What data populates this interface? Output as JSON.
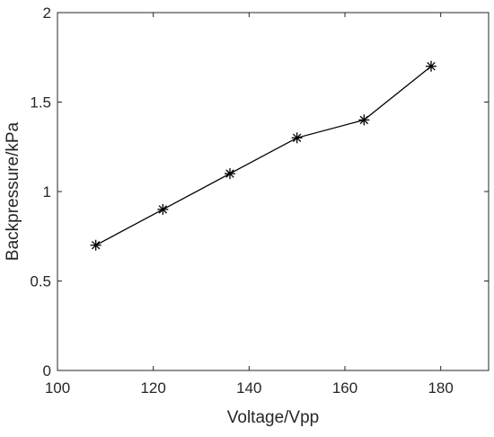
{
  "chart_data": {
    "type": "line",
    "title": "",
    "xlabel": "Voltage/Vpp",
    "ylabel": "Backpressure/kPa",
    "xlim": [
      100,
      190
    ],
    "ylim": [
      0,
      2
    ],
    "x_ticks": [
      "100",
      "120",
      "140",
      "160",
      "180"
    ],
    "y_ticks": [
      "0",
      "0.5",
      "1",
      "1.5",
      "2"
    ],
    "grid": false,
    "legend": "none",
    "marker": "asterisk",
    "line_color": "#000000",
    "series": [
      {
        "x": [
          108,
          122,
          136,
          150,
          164,
          178
        ],
        "y": [
          0.7,
          0.9,
          1.1,
          1.3,
          1.4,
          1.7
        ]
      }
    ]
  }
}
